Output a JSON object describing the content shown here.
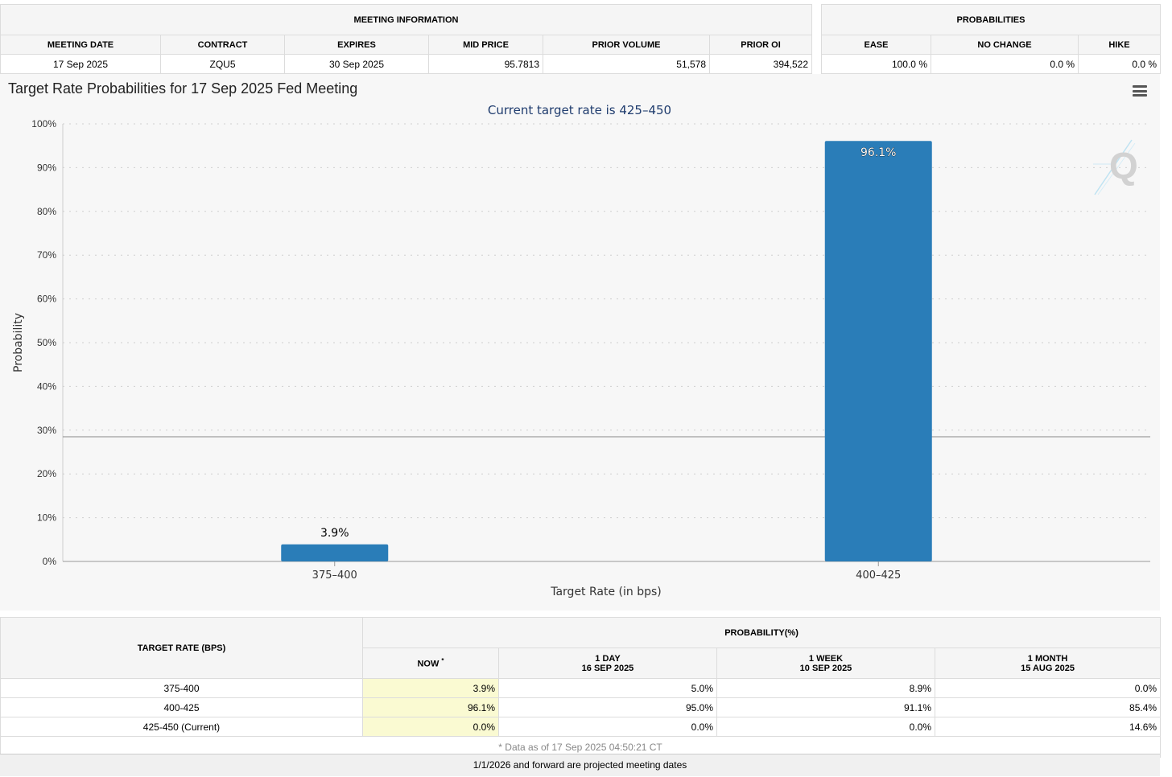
{
  "meeting_info": {
    "section_title": "MEETING INFORMATION",
    "headers": [
      "MEETING DATE",
      "CONTRACT",
      "EXPIRES",
      "MID PRICE",
      "PRIOR VOLUME",
      "PRIOR OI"
    ],
    "values": [
      "17 Sep 2025",
      "ZQU5",
      "30 Sep 2025",
      "95.7813",
      "51,578",
      "394,522"
    ]
  },
  "probabilities": {
    "section_title": "PROBABILITIES",
    "headers": [
      "EASE",
      "NO CHANGE",
      "HIKE"
    ],
    "values": [
      "100.0 %",
      "0.0 %",
      "0.0 %"
    ]
  },
  "chart_data": {
    "type": "bar",
    "title": "Target Rate Probabilities for 17 Sep 2025 Fed Meeting",
    "subtitle": "Current target rate is 425–450",
    "categories": [
      "375–400",
      "400–425"
    ],
    "values": [
      3.9,
      96.1
    ],
    "data_labels": [
      "3.9%",
      "96.1%"
    ],
    "xlabel": "Target Rate (in bps)",
    "ylabel": "Probability",
    "ylim": [
      0,
      100
    ],
    "yticks": [
      0,
      10,
      20,
      30,
      40,
      50,
      60,
      70,
      80,
      90,
      100
    ],
    "ytick_labels": [
      "0%",
      "10%",
      "20%",
      "30%",
      "40%",
      "50%",
      "60%",
      "70%",
      "80%",
      "90%",
      "100%"
    ],
    "reference_line": 28.5,
    "bar_color": "#2a7db8",
    "grid": true
  },
  "history_table": {
    "target_rate_header": "TARGET RATE (BPS)",
    "probability_header": "PROBABILITY(%)",
    "columns": [
      {
        "line1": "NOW",
        "line2": "",
        "marker": "*"
      },
      {
        "line1": "1 DAY",
        "line2": "16 SEP 2025"
      },
      {
        "line1": "1 WEEK",
        "line2": "10 SEP 2025"
      },
      {
        "line1": "1 MONTH",
        "line2": "15 AUG 2025"
      }
    ],
    "rows": [
      {
        "rate": "375-400",
        "now": "3.9%",
        "day": "5.0%",
        "week": "8.9%",
        "month": "0.0%"
      },
      {
        "rate": "400-425",
        "now": "96.1%",
        "day": "95.0%",
        "week": "91.1%",
        "month": "85.4%"
      },
      {
        "rate": "425-450 (Current)",
        "now": "0.0%",
        "day": "0.0%",
        "week": "0.0%",
        "month": "14.6%"
      }
    ],
    "footnote": "* Data as of 17 Sep 2025 04:50:21 CT"
  },
  "footer": {
    "text": "1/1/2026 and forward are projected meeting dates"
  }
}
